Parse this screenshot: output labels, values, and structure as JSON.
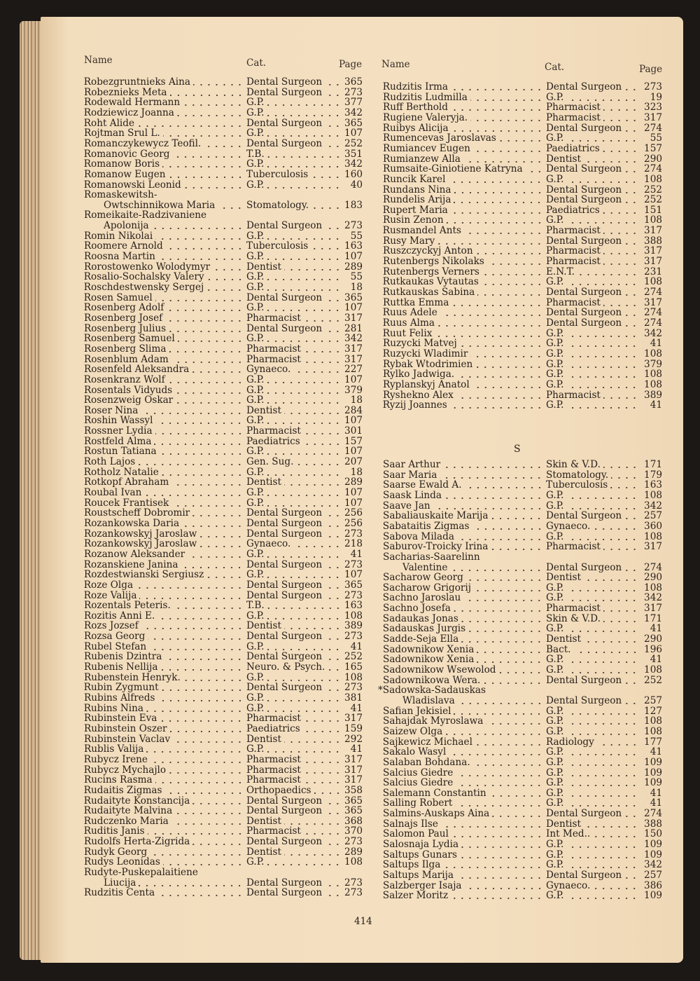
{
  "page_number": "414",
  "left": {
    "header": {
      "name": "Name",
      "cat": "Cat.",
      "page": "Page"
    },
    "entries": [
      {
        "name": "*Robezgruntnieks Aina",
        "cat": "Dental Surgeon",
        "page": "365"
      },
      {
        "name": "Robeznieks Meta",
        "cat": "Dental Surgeon",
        "page": "273"
      },
      {
        "name": "Rodewald Hermann",
        "cat": "G.P.",
        "page": "377"
      },
      {
        "name": "*Rodziewicz Joanna",
        "cat": "G.P.",
        "page": "342"
      },
      {
        "name": "*Roht Alide",
        "cat": "Dental Surgeon",
        "page": "365"
      },
      {
        "name": "Rojtman Srul L.",
        "cat": "G.P.",
        "page": "107"
      },
      {
        "name": "Romanczykewycz Teofil.",
        "cat": "Dental Surgeon",
        "page": "252"
      },
      {
        "name": "*Romanovic Georg",
        "cat": "T.B.",
        "page": "351"
      },
      {
        "name": "*Romanow Boris",
        "cat": "G.P.",
        "page": "342"
      },
      {
        "name": "Romanow Eugen",
        "cat": "Tuberculosis",
        "page": "160"
      },
      {
        "name": "*Romanowski Leonid",
        "cat": "G.P.",
        "page": "40"
      },
      {
        "name": "Romaskewitsh-",
        "cont": "Owtschinnikowa Maria",
        "cat": "Stomatology.",
        "page": "183"
      },
      {
        "name": "Romeikaite-Radzivaniene",
        "cont": "Apolonija",
        "cat": "Dental Surgeon",
        "page": "273"
      },
      {
        "name": "Romin Nikolai",
        "cat": "G.P.",
        "page": "55"
      },
      {
        "name": "Roomere Arnold",
        "cat": "Tuberculosis",
        "page": "163"
      },
      {
        "name": "Roosna Martin",
        "cat": "G.P.",
        "page": "107"
      },
      {
        "name": "Rorostowenko Wolodymyr",
        "cat": "Dentist",
        "page": "289"
      },
      {
        "name": "*Rosalio-Sochalsky Valery",
        "cat": "G.P.",
        "page": "55"
      },
      {
        "name": "*Roschdestwensky Sergej",
        "cat": "G.P.",
        "page": "18"
      },
      {
        "name": "*Rosen Samuel",
        "cat": "Dental Surgeon",
        "page": "365"
      },
      {
        "name": "*Rosenberg Adolf",
        "cat": "G.P.",
        "page": "107"
      },
      {
        "name": "Rosenberg Josef",
        "cat": "Pharmacist",
        "page": "317"
      },
      {
        "name": "Rosenberg Julius",
        "cat": "Dental Surgeon",
        "page": "281"
      },
      {
        "name": "*Rosenberg Samuel",
        "cat": "G.P.",
        "page": "342"
      },
      {
        "name": "Rosenberg Slima",
        "cat": "Pharmacist",
        "page": "317"
      },
      {
        "name": "Rosenblum Adam",
        "cat": "Pharmacist",
        "page": "317"
      },
      {
        "name": "Rosenfeld Aleksandra",
        "cat": "Gynaeco.",
        "page": "227"
      },
      {
        "name": "*Rosenkranz Wolf",
        "cat": "G.P.",
        "page": "107"
      },
      {
        "name": "Rosentals Vidyuds",
        "cat": "G.P.",
        "page": "379"
      },
      {
        "name": "*Rosenzweig Oskar",
        "cat": "G.P.",
        "page": "18"
      },
      {
        "name": "Roser Nina",
        "cat": "Dentist",
        "page": "284"
      },
      {
        "name": "Roshin Wassyl",
        "cat": "G.P.",
        "page": "107"
      },
      {
        "name": "Rossner Lydia",
        "cat": "Pharmacist",
        "page": "301"
      },
      {
        "name": "Rostfeld Alma",
        "cat": "Paediatrics",
        "page": "157"
      },
      {
        "name": "Rostun Tatiana",
        "cat": "G.P.",
        "page": "107"
      },
      {
        "name": "*Roth Lajos",
        "cat": "Gen. Sug.",
        "page": "207"
      },
      {
        "name": "*Rotholz Natalie",
        "cat": "G.P.",
        "page": "18"
      },
      {
        "name": "Rotkopf Abraham",
        "cat": "Dentist",
        "page": "289"
      },
      {
        "name": "*Roubal Ivan",
        "cat": "G.P.",
        "page": "107"
      },
      {
        "name": "Roucek Frantisek",
        "cat": "G.P.",
        "page": "107"
      },
      {
        "name": "Roustscheff Dobromir",
        "cat": "Dental Surgeon",
        "page": "256"
      },
      {
        "name": "Rozankowska Daria",
        "cat": "Dental Surgeon",
        "page": "256"
      },
      {
        "name": "Rozankowskyj Jaroslaw",
        "cat": "Dental Surgeon",
        "page": "273"
      },
      {
        "name": "Rozankowskyj Jaroslaw",
        "cat": "Gynaeco.",
        "page": "218"
      },
      {
        "name": "Rozanow Aleksander",
        "cat": "G.P.",
        "page": "41"
      },
      {
        "name": "*Rozanskiene Janina",
        "cat": "Dental Surgeon",
        "page": "273"
      },
      {
        "name": "Rozdestwianski Sergiusz",
        "cat": "G.P.",
        "page": "107"
      },
      {
        "name": "*Roze Olga",
        "cat": "Dental Surgeon",
        "page": "365"
      },
      {
        "name": "*Roze Valija",
        "cat": "Dental Surgeon",
        "page": "273"
      },
      {
        "name": "Rozentals Peteris.",
        "cat": "T.B.",
        "page": "163"
      },
      {
        "name": "Rozitis Anni E.",
        "cat": "G.P.",
        "page": "108"
      },
      {
        "name": "Rozs Jozsef",
        "cat": "Dentist",
        "page": "389"
      },
      {
        "name": "Rozsa Georg",
        "cat": "Dental Surgeon",
        "page": "273"
      },
      {
        "name": "Rubel Stefan",
        "cat": "G.P.",
        "page": "41"
      },
      {
        "name": "Rubenis Dzintra",
        "cat": "Dental Surgeon",
        "page": "252"
      },
      {
        "name": "Rubenis Nellija",
        "cat": "Neuro. & Psych.",
        "page": "165"
      },
      {
        "name": "Rubenstein Henryk.",
        "cat": "G.P.",
        "page": "108"
      },
      {
        "name": "*Rubin Zygmunt",
        "cat": "Dental Surgeon",
        "page": "273"
      },
      {
        "name": "Rubins Alfreds",
        "cat": "G.P.",
        "page": "381"
      },
      {
        "name": "*Rubins Nina",
        "cat": "G.P.",
        "page": "41"
      },
      {
        "name": "Rubinstein Eva",
        "cat": "Pharmacist",
        "page": "317"
      },
      {
        "name": "Rubinstein Oszer",
        "cat": "Paediatrics",
        "page": "159"
      },
      {
        "name": "Rubinstein Vaclav",
        "cat": "Dentist",
        "page": "292"
      },
      {
        "name": "Rublis Valija",
        "cat": "G.P.",
        "page": "41"
      },
      {
        "name": "*Rubycz Irene",
        "cat": "Pharmacist",
        "page": "317"
      },
      {
        "name": "*Rubycz Mychajlo",
        "cat": "Pharmacist",
        "page": "317"
      },
      {
        "name": "Rucins Rasma",
        "cat": "Pharmacist",
        "page": "317"
      },
      {
        "name": "*Rudaitis Zigmas",
        "cat": "Orthopaedics",
        "page": "358"
      },
      {
        "name": "*Rudaityte Konstancija",
        "cat": "Dental Surgeon",
        "page": "365"
      },
      {
        "name": "*Rudaityte Malvina",
        "cat": "Dental Surgeon",
        "page": "365"
      },
      {
        "name": "*Rudczenko Maria",
        "cat": "Dentist",
        "page": "368"
      },
      {
        "name": "*Ruditis Janis",
        "cat": "Pharmacist",
        "page": "370"
      },
      {
        "name": "Rudolfs Herta-Zigrida",
        "cat": "Dental Surgeon",
        "page": "273"
      },
      {
        "name": "Rudyk Georg",
        "cat": "Dentist",
        "page": "289"
      },
      {
        "name": "Rudys Leonidas",
        "cat": "G.P.",
        "page": "108"
      },
      {
        "name": "Rudyte-Puskepalaitiene",
        "cont": "Liucija",
        "cat": "Dental Surgeon",
        "page": "273"
      },
      {
        "name": "Rudzitis Centa",
        "cat": "Dental Surgeon",
        "page": "273"
      }
    ]
  },
  "right": {
    "header": {
      "name": "Name",
      "cat": "Cat.",
      "page": "Page"
    },
    "entries": [
      {
        "name": "*Rudzitis Irma",
        "cat": "Dental Surgeon",
        "page": "273"
      },
      {
        "name": "Rudzitis Ludmilla",
        "cat": "G.P.",
        "page": "19"
      },
      {
        "name": "Ruff Berthold",
        "cat": "Pharmacist",
        "page": "323"
      },
      {
        "name": "Rugiene Valeryja.",
        "cat": "Pharmacist",
        "page": "317"
      },
      {
        "name": "*Ruibys Alicija",
        "cat": "Dental Surgeon",
        "page": "274"
      },
      {
        "name": "Rumencevas Jaroslavas",
        "cat": "G.P.",
        "page": "55"
      },
      {
        "name": "Rumiancev Eugen",
        "cat": "Paediatrics",
        "page": "157"
      },
      {
        "name": "Rumianzew Alla",
        "cat": "Dentist",
        "page": "290"
      },
      {
        "name": "Rumsaite-Giniotiene Katryna",
        "cat": "Dental Surgeon",
        "page": "274"
      },
      {
        "name": "Runcik Karel",
        "cat": "G.P.",
        "page": "108"
      },
      {
        "name": "*Rundans Nina",
        "cat": "Dental Surgeon",
        "page": "252"
      },
      {
        "name": "Rundelis Arija",
        "cat": "Dental Surgeon",
        "page": "252"
      },
      {
        "name": "*Rupert Maria",
        "cat": "Paediatrics",
        "page": "151"
      },
      {
        "name": "Rusin Zenon",
        "cat": "G.P.",
        "page": "108"
      },
      {
        "name": "*Rusmandel Ants",
        "cat": "Pharmacist",
        "page": "317"
      },
      {
        "name": "Rusy Mary",
        "cat": "Dental Surgeon",
        "page": "388"
      },
      {
        "name": "Ruszczyckyj Anton",
        "cat": "Pharmacist",
        "page": "317"
      },
      {
        "name": "Rutenbergs Nikolaks",
        "cat": "Pharmacist",
        "page": "317"
      },
      {
        "name": "Rutenbergs Verners",
        "cat": "E.N.T.",
        "page": "231"
      },
      {
        "name": "*Rutkaukas Vytautas",
        "cat": "G.P.",
        "page": "108"
      },
      {
        "name": "*Rutkauskas Sabina",
        "cat": "Dental Surgeon",
        "page": "274"
      },
      {
        "name": "Ruttka Emma",
        "cat": "Pharmacist",
        "page": "317"
      },
      {
        "name": "*Ruus Adele",
        "cat": "Dental Surgeon",
        "page": "274"
      },
      {
        "name": "*Ruus Alma",
        "cat": "Dental Surgeon",
        "page": "274"
      },
      {
        "name": "*Ruut Felix",
        "cat": "G.P.",
        "page": "342"
      },
      {
        "name": "Ruzycki Matvej",
        "cat": "G.P.",
        "page": "41"
      },
      {
        "name": "*Ruzycki Wladimir",
        "cat": "G.P.",
        "page": "108"
      },
      {
        "name": "Rybak Wtodrimien",
        "cat": "G.P.",
        "page": "379"
      },
      {
        "name": "Rylko Jadwiga.",
        "cat": "G.P.",
        "page": "108"
      },
      {
        "name": "Ryplanskyj Anatol",
        "cat": "G.P.",
        "page": "108"
      },
      {
        "name": "Ryshekno Alex",
        "cat": "Pharmacist",
        "page": "389"
      },
      {
        "name": "*Ryzij Joannes",
        "cat": "G.P.",
        "page": "41"
      }
    ],
    "section_letter": "S",
    "s_entries": [
      {
        "name": "Saar Arthur",
        "cat": "Skin & V.D.",
        "page": "171"
      },
      {
        "name": "Saar Maria",
        "cat": "Stomatology.",
        "page": "179"
      },
      {
        "name": "Saarse Ewald A.",
        "cat": "Tuberculosis",
        "page": "163"
      },
      {
        "name": "Saask Linda",
        "cat": "G.P.",
        "page": "108"
      },
      {
        "name": "*Saave Jan",
        "cat": "G.P.",
        "page": "342"
      },
      {
        "name": "Sabaliauskaite Marija",
        "cat": "Dental Surgeon",
        "page": "257"
      },
      {
        "name": "*Sabataitis Zigmas",
        "cat": "Gynaeco.",
        "page": "360"
      },
      {
        "name": "Sabova Milada",
        "cat": "G.P.",
        "page": "108"
      },
      {
        "name": "Saburov-Troicky Irina",
        "cat": "Pharmacist",
        "page": "317"
      },
      {
        "name": "Sacharias-Saarelinn",
        "cont": "Valentine",
        "cat": "Dental Surgeon",
        "page": "274"
      },
      {
        "name": "Sacharow Georg",
        "cat": "Dentist",
        "page": "290"
      },
      {
        "name": "*Sacharow Grigorij",
        "cat": "G.P.",
        "page": "108"
      },
      {
        "name": "*Sachno Jaroslau",
        "cat": "G.P.",
        "page": "342"
      },
      {
        "name": "Sachno Josefa",
        "cat": "Pharmacist",
        "page": "317"
      },
      {
        "name": "*Sadaukas Jonas",
        "cat": "Skin & V.D.",
        "page": "171"
      },
      {
        "name": "*Sadauskas Jurgis",
        "cat": "G.P.",
        "page": "41"
      },
      {
        "name": "Sadde-Seja Ella",
        "cat": "Dentist",
        "page": "290"
      },
      {
        "name": "Sadownikow Xenia",
        "cat": "Bact.",
        "page": "196"
      },
      {
        "name": "Sadownikow Xenia",
        "cat": "G.P.",
        "page": "41"
      },
      {
        "name": "Sadownikow Wsewolod",
        "cat": "G.P.",
        "page": "108"
      },
      {
        "name": "Sadownikowa Wera.",
        "cat": "Dental Surgeon",
        "page": "252"
      },
      {
        "name": "*Sadowska-Sadauskas",
        "cont": "Wladislava",
        "cat": "Dental Surgeon",
        "page": "257"
      },
      {
        "name": "Safian Jekisiel",
        "cat": "G.P.",
        "page": "127"
      },
      {
        "name": "Sahajdak Myroslawa",
        "cat": "G.P.",
        "page": "108"
      },
      {
        "name": "Saizew Olga",
        "cat": "G.P.",
        "page": "108"
      },
      {
        "name": "*Sajkewicz Michael",
        "cat": "Radiology",
        "page": "177"
      },
      {
        "name": "*Sakalo Wasyl",
        "cat": "G.P.",
        "page": "41"
      },
      {
        "name": "Salaban Bohdana.",
        "cat": "G.P.",
        "page": "109"
      },
      {
        "name": "Salcius Giedre",
        "cat": "G.P.",
        "page": "109"
      },
      {
        "name": "Salcius Giedre",
        "cat": "G.P.",
        "page": "109"
      },
      {
        "name": "*Salemann Constantin",
        "cat": "G.P.",
        "page": "41"
      },
      {
        "name": "Salling Robert",
        "cat": "G.P.",
        "page": "41"
      },
      {
        "name": "Salmins-Auskaps Aina",
        "cat": "Dental Surgeon",
        "page": "274"
      },
      {
        "name": "Salnajs Ilse",
        "cat": "Dentist",
        "page": "388"
      },
      {
        "name": "Salomon Paul",
        "cat": "Int Med..",
        "page": "150"
      },
      {
        "name": "Salosnaja Lydia",
        "cat": "G.P.",
        "page": "109"
      },
      {
        "name": "Saltups Gunars",
        "cat": "G.P.",
        "page": "109"
      },
      {
        "name": "*Saltups Ilga",
        "cat": "G.P.",
        "page": "342"
      },
      {
        "name": "*Saltups Marija",
        "cat": "Dental Surgeon",
        "page": "257"
      },
      {
        "name": "Salzberger Isaja",
        "cat": "Gynaeco.",
        "page": "386"
      },
      {
        "name": "*Salzer Moritz",
        "cat": "G.P.",
        "page": "109"
      }
    ]
  }
}
